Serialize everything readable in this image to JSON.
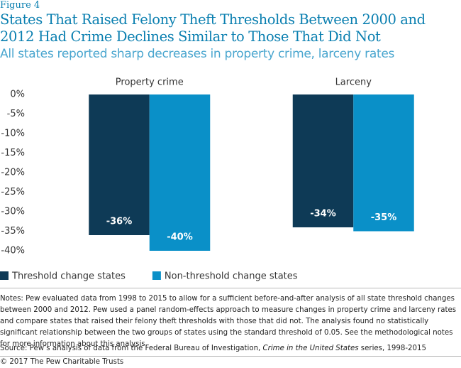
{
  "chart_data": {
    "type": "bar",
    "figure_label": "Figure 4",
    "title": "States That Raised Felony Theft Thresholds Between 2000 and 2012 Had Crime Declines Similar to Those That Did Not",
    "subtitle": "All states reported sharp decreases in property crime, larceny rates",
    "categories": [
      "Property crime",
      "Larceny"
    ],
    "series": [
      {
        "name": "Threshold change states",
        "color": "#0e3a56",
        "values": [
          -36,
          -34
        ],
        "value_labels": [
          "-36%",
          "-34%"
        ]
      },
      {
        "name": "Non-threshold change states",
        "color": "#0a90c8",
        "values": [
          -40,
          -35
        ],
        "value_labels": [
          "-40%",
          "-35%"
        ]
      }
    ],
    "ylim": [
      -40,
      0
    ],
    "yticks": [
      {
        "value": 0,
        "label": "0%"
      },
      {
        "value": -5,
        "label": "-5%"
      },
      {
        "value": -10,
        "label": "-10%"
      },
      {
        "value": -15,
        "label": "-15%"
      },
      {
        "value": -20,
        "label": "-20%"
      },
      {
        "value": -25,
        "label": "-25%"
      },
      {
        "value": -30,
        "label": "-30%"
      },
      {
        "value": -35,
        "label": "-35%"
      },
      {
        "value": -40,
        "label": "-40%"
      }
    ],
    "legend": "bottom-left",
    "notes": "Notes: Pew evaluated data from 1998 to 2015 to allow for a sufficient before-and-after analysis of all state threshold changes between 2000 and 2012. Pew used a panel random-effects approach to measure changes in property crime and larceny rates and compare states that raised their felony theft thresholds with those that did not. The analysis found no statistically significant relationship between the two groups of states using the standard threshold of 0.05. See the methodological notes for more information about this analysis.",
    "source": {
      "before": "Source: Pew’s analysis of data from the Federal Bureau of Investigation, ",
      "title": "Crime in the United States",
      "after": " series, 1998-2015"
    },
    "copyright": "© 2017 The Pew Charitable Trusts"
  }
}
